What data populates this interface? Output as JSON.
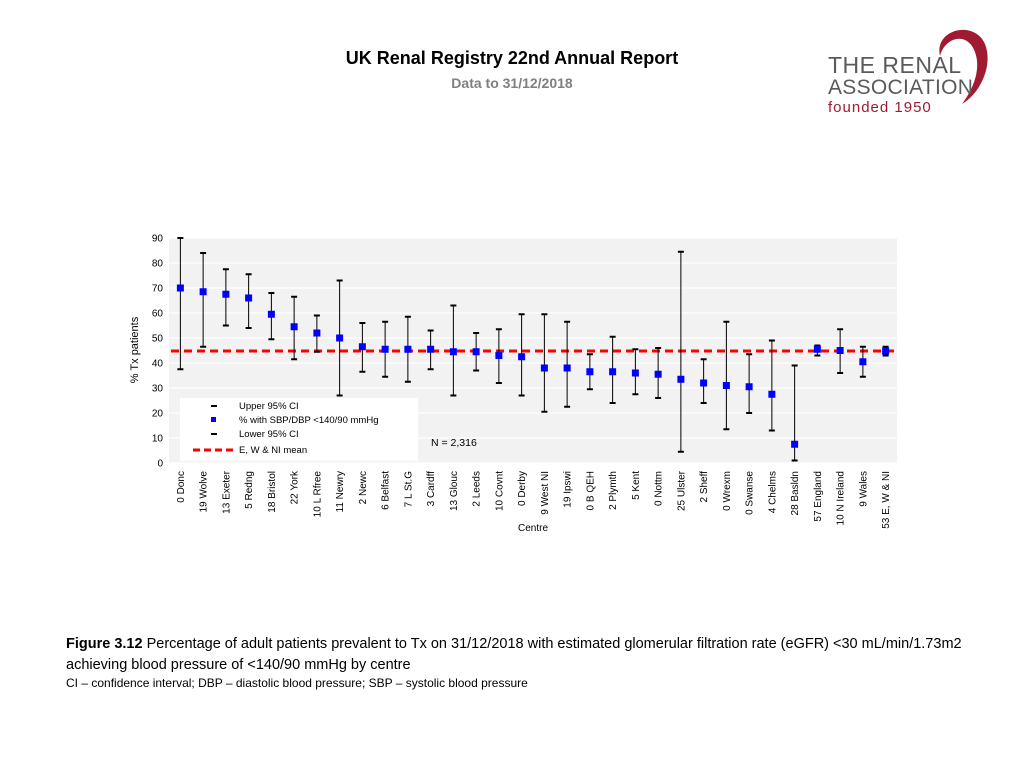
{
  "header": {
    "title": "UK Renal Registry 22nd Annual Report",
    "subtitle": "Data to 31/12/2018"
  },
  "logo": {
    "line1": "THE RENAL",
    "line2": "ASSOCIATION",
    "line3": "founded 1950",
    "color": "#9e1b32"
  },
  "caption": {
    "figure_label": "Figure 3.12",
    "text": "Percentage of adult patients prevalent to Tx on 31/12/2018 with estimated glomerular filtration rate (eGFR) <30 mL/min/1.73m2 achieving blood pressure of <140/90 mmHg by centre",
    "note": "CI – confidence interval; DBP – diastolic blood pressure; SBP – systolic blood pressure"
  },
  "chart_data": {
    "type": "scatter",
    "title": "",
    "xlabel": "Centre",
    "ylabel": "% Tx patients",
    "ylim": [
      0,
      90
    ],
    "yticks": [
      0,
      10,
      20,
      30,
      40,
      50,
      60,
      70,
      80,
      90
    ],
    "grid": true,
    "annotation": "N = 2,316",
    "mean_line": 44.8,
    "legend": {
      "position": "bottom-left",
      "entries": [
        "Upper 95% CI",
        "% with SBP/DBP <140/90 mmHg",
        "Lower 95% CI",
        "E, W & NI mean"
      ]
    },
    "colors": {
      "point": "#0000ff",
      "mean": "#ff0000",
      "ci": "#000000"
    },
    "categories": [
      "0 Donc",
      "19 Wolve",
      "13 Exeter",
      "5 Redng",
      "18 Bristol",
      "22 York",
      "10 L Rfree",
      "11 Newry",
      "2 Newc",
      "6 Belfast",
      "7 L St.G",
      "3 Cardff",
      "13 Glouc",
      "2 Leeds",
      "10 Covnt",
      "0 Derby",
      "9 West NI",
      "19 Ipswi",
      "0 B QEH",
      "2 Plymth",
      "5 Kent",
      "0 Nottm",
      "25 Ulster",
      "2 Sheff",
      "0 Wrexm",
      "0 Swanse",
      "4 Chelms",
      "28 Basldn",
      "57 England",
      "10 N Ireland",
      "9 Wales",
      "53 E, W & NI"
    ],
    "values": [
      70,
      68.5,
      67.5,
      66,
      59.5,
      54.5,
      52,
      50,
      46.5,
      45.5,
      45.5,
      45.5,
      44.5,
      44.5,
      43,
      42.5,
      38,
      38,
      36.5,
      36.5,
      36,
      35.5,
      33.5,
      32,
      31,
      30.5,
      27.5,
      7.5,
      45.5,
      45,
      40.5,
      44.8
    ],
    "upper_ci": [
      90,
      84,
      77.5,
      75.5,
      68,
      66.5,
      59,
      73,
      56,
      56.5,
      58.5,
      53,
      63,
      52,
      53.5,
      59.5,
      59.5,
      56.5,
      43.5,
      50.5,
      45.5,
      46,
      84.5,
      41.5,
      56.5,
      43.5,
      49,
      39,
      47,
      53.5,
      46.5,
      46.5
    ],
    "lower_ci": [
      37.5,
      46.5,
      55,
      54,
      49.5,
      41.5,
      44.5,
      27,
      36.5,
      34.5,
      32.5,
      37.5,
      27,
      37,
      32,
      27,
      20.5,
      22.5,
      29.5,
      24,
      27.5,
      26,
      4.5,
      24,
      13.5,
      20,
      13,
      1,
      43,
      36,
      34.5,
      43
    ]
  }
}
